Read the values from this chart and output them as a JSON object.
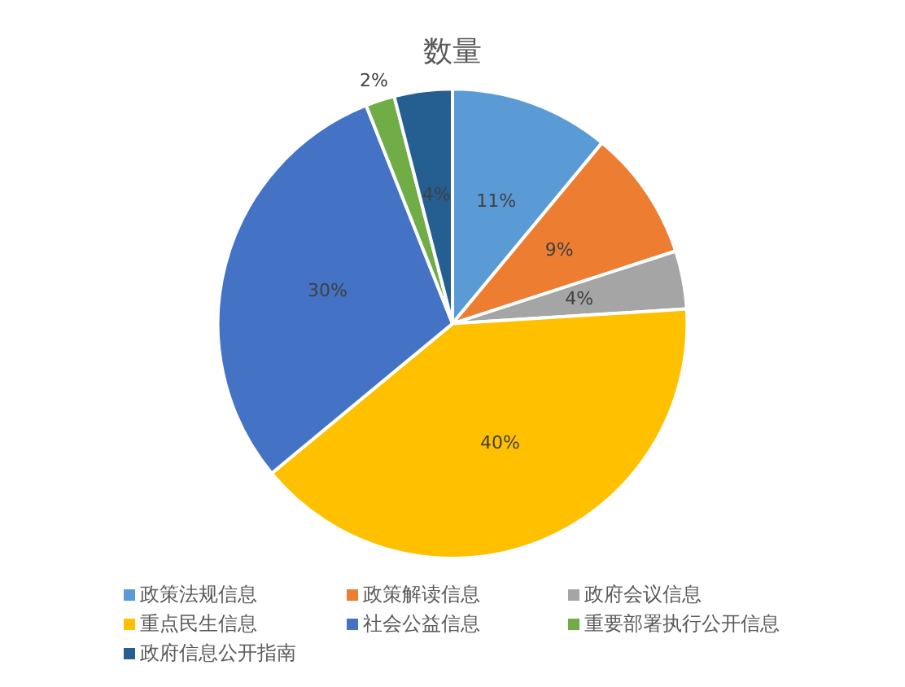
{
  "chart_data": {
    "type": "pie",
    "title": "数量",
    "categories": [
      "政策法规信息",
      "政策解读信息",
      "政府会议信息",
      "重点民生信息",
      "社会公益信息",
      "重要部署执行公开信息",
      "政府信息公开指南"
    ],
    "values": [
      11,
      9,
      4,
      40,
      30,
      2,
      4
    ],
    "colors": [
      "#5b9bd5",
      "#ed7d31",
      "#a5a5a5",
      "#ffc000",
      "#4472c4",
      "#70ad47",
      "#255e91"
    ],
    "value_labels": [
      "11%",
      "9%",
      "4%",
      "40%",
      "30%",
      "2%",
      "4%"
    ],
    "legend": "bottom"
  }
}
